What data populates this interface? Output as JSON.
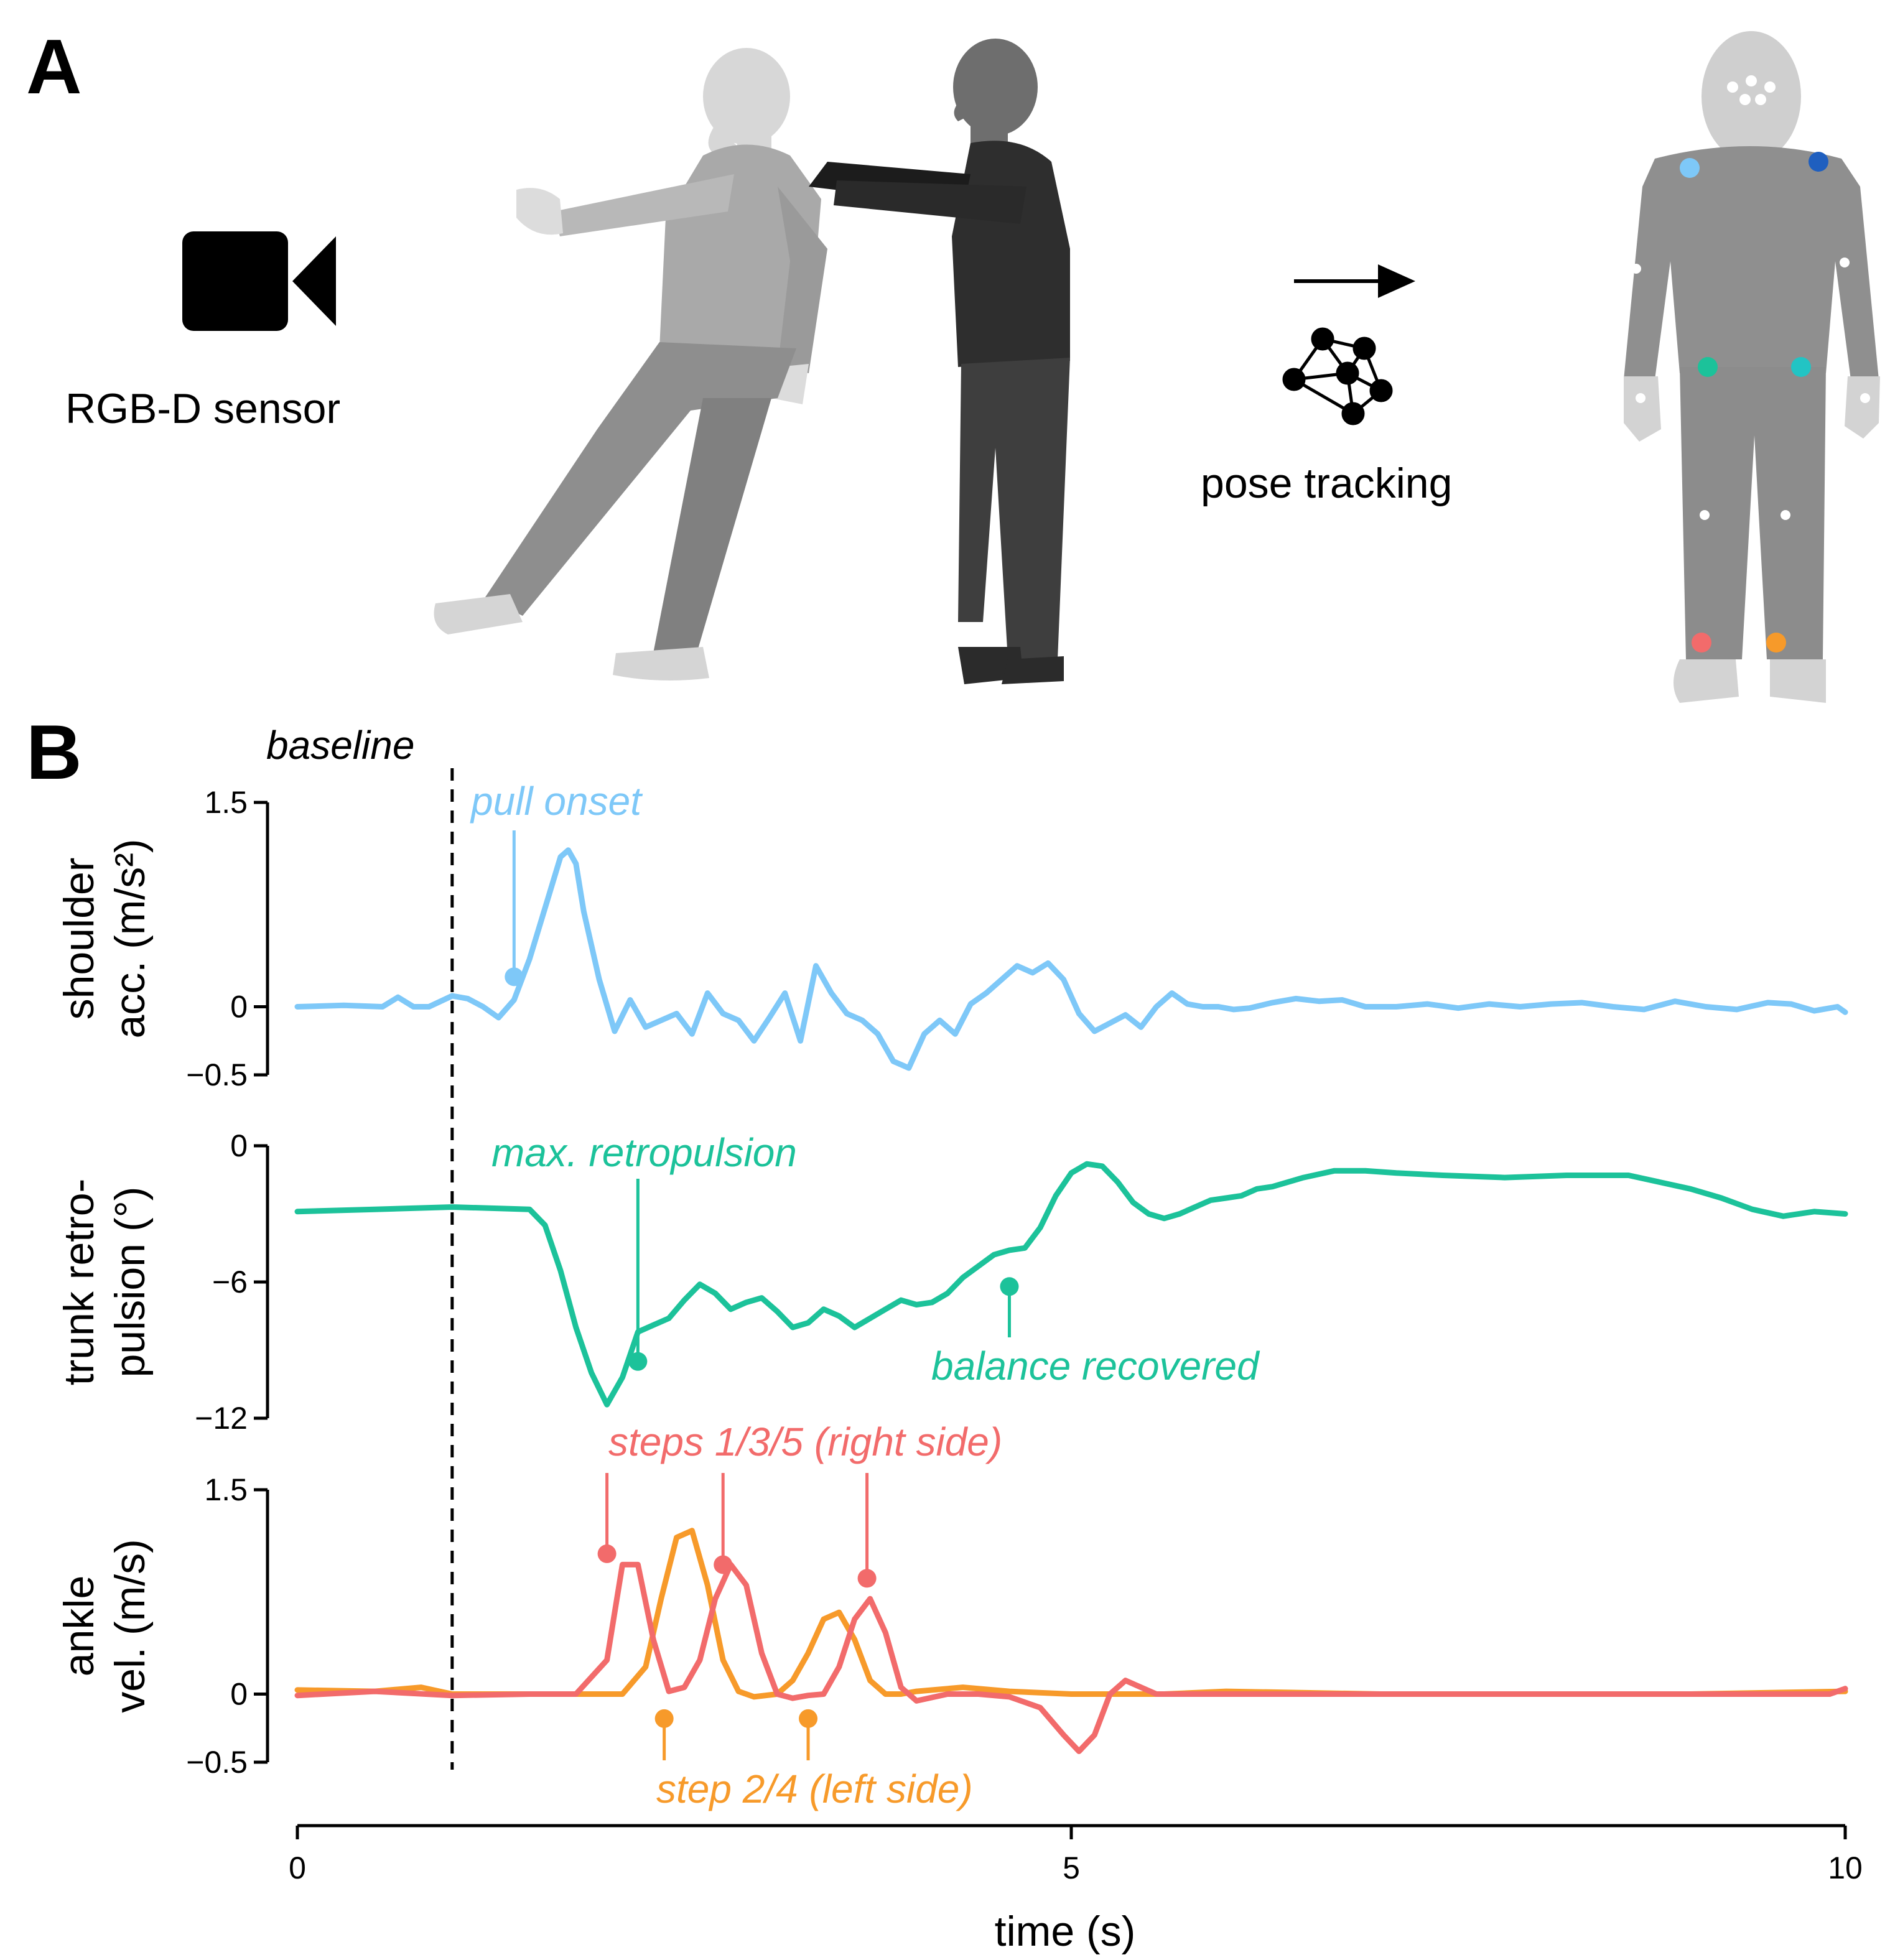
{
  "panel_a": {
    "letter": "A",
    "sensor_label": "RGB-D sensor",
    "tracking_label": "pose tracking",
    "icons": [
      "video-camera-icon",
      "network-graph-icon",
      "arrow-right-icon"
    ],
    "keypoint_colors": {
      "left_shoulder": "#7EC8F8",
      "right_shoulder": "#1F5FBF",
      "left_hip": "#1CC29A",
      "right_hip": "#22C4C4",
      "right_ankle": "#F26B6B",
      "left_ankle": "#F79A2A",
      "other": "#ffffff"
    }
  },
  "panel_b": {
    "letter": "B",
    "baseline_label": "baseline"
  },
  "chart_data": {
    "type": "line",
    "xlabel": "time (s)",
    "xlim": [
      0,
      10
    ],
    "xticks": [
      "0",
      "5",
      "10"
    ],
    "baseline_x": 1,
    "subplots": [
      {
        "ylabel": [
          "shoulder",
          "acc. (m/s²)"
        ],
        "ylim": [
          -0.5,
          1.5
        ],
        "yticks": [
          {
            "v": 1.5,
            "t": "1.5"
          },
          {
            "v": 0,
            "t": "0"
          },
          {
            "v": -0.5,
            "t": "−0.5"
          }
        ],
        "series": [
          {
            "color": "#7EC8F8",
            "x": [
              0,
              0.3,
              0.55,
              0.65,
              0.75,
              0.85,
              1.0,
              1.1,
              1.2,
              1.3,
              1.4,
              1.5,
              1.62,
              1.7,
              1.75,
              1.8,
              1.85,
              1.95,
              2.05,
              2.15,
              2.25,
              2.35,
              2.45,
              2.55,
              2.65,
              2.75,
              2.85,
              2.95,
              3.05,
              3.15,
              3.25,
              3.35,
              3.45,
              3.55,
              3.65,
              3.75,
              3.85,
              3.95,
              4.05,
              4.15,
              4.25,
              4.35,
              4.45,
              4.55,
              4.65,
              4.75,
              4.85,
              4.95,
              5.05,
              5.15,
              5.25,
              5.35,
              5.45,
              5.55,
              5.65,
              5.75,
              5.85,
              5.95,
              6.05,
              6.15,
              6.3,
              6.45,
              6.6,
              6.75,
              6.9,
              7.1,
              7.3,
              7.5,
              7.7,
              7.9,
              8.1,
              8.3,
              8.5,
              8.7,
              8.9,
              9.1,
              9.3,
              9.5,
              9.65,
              9.8,
              9.95,
              10.0
            ],
            "y": [
              0,
              0.01,
              0,
              0.07,
              0.0,
              0,
              0.08,
              0.06,
              0.0,
              -0.08,
              0.05,
              0.35,
              0.8,
              1.1,
              1.15,
              1.05,
              0.7,
              0.2,
              -0.18,
              0.05,
              -0.15,
              -0.1,
              -0.05,
              -0.2,
              0.1,
              -0.05,
              -0.1,
              -0.25,
              -0.08,
              0.1,
              -0.25,
              0.3,
              0.1,
              -0.05,
              -0.1,
              -0.2,
              -0.4,
              -0.45,
              -0.2,
              -0.1,
              -0.2,
              0.02,
              0.1,
              0.2,
              0.3,
              0.25,
              0.32,
              0.2,
              -0.05,
              -0.18,
              -0.12,
              -0.06,
              -0.15,
              0.0,
              0.1,
              0.02,
              0.0,
              0.0,
              -0.02,
              -0.01,
              0.03,
              0.06,
              0.04,
              0.05,
              0.0,
              0.0,
              0.02,
              -0.01,
              0.02,
              0.0,
              0.02,
              0.03,
              0.0,
              -0.02,
              0.04,
              0.0,
              -0.02,
              0.03,
              0.02,
              -0.03,
              0.0,
              -0.04
            ]
          }
        ],
        "annotations": [
          {
            "text": "pull onset",
            "color": "#7EC8F8",
            "x": 1.4,
            "y": 0.22
          }
        ]
      },
      {
        "ylabel": [
          "trunk retro-",
          "pulsion (°)"
        ],
        "ylim": [
          -12,
          0
        ],
        "yticks": [
          {
            "v": 0,
            "t": "0"
          },
          {
            "v": -6,
            "t": "−6"
          },
          {
            "v": -12,
            "t": "−12"
          }
        ],
        "series": [
          {
            "color": "#1CC29A",
            "x": [
              0,
              0.5,
              1.0,
              1.5,
              1.6,
              1.7,
              1.8,
              1.9,
              2.0,
              2.1,
              2.2,
              2.3,
              2.4,
              2.5,
              2.6,
              2.7,
              2.8,
              2.9,
              3.0,
              3.1,
              3.2,
              3.3,
              3.4,
              3.5,
              3.6,
              3.7,
              3.8,
              3.9,
              4.0,
              4.1,
              4.2,
              4.3,
              4.4,
              4.5,
              4.6,
              4.7,
              4.8,
              4.9,
              5.0,
              5.1,
              5.2,
              5.3,
              5.4,
              5.5,
              5.6,
              5.7,
              5.8,
              5.9,
              6.0,
              6.1,
              6.2,
              6.3,
              6.5,
              6.7,
              6.9,
              7.1,
              7.4,
              7.8,
              8.2,
              8.6,
              9.0,
              9.2,
              9.4,
              9.6,
              9.8,
              10.0
            ],
            "y": [
              -2.9,
              -2.8,
              -2.7,
              -2.8,
              -3.5,
              -5.5,
              -8.0,
              -10.0,
              -11.4,
              -10.2,
              -8.2,
              -7.9,
              -7.6,
              -6.8,
              -6.1,
              -6.5,
              -7.2,
              -6.9,
              -6.7,
              -7.3,
              -8.0,
              -7.8,
              -7.2,
              -7.5,
              -8.0,
              -7.6,
              -7.2,
              -6.8,
              -7.0,
              -6.9,
              -6.5,
              -5.8,
              -5.3,
              -4.8,
              -4.6,
              -4.5,
              -3.6,
              -2.2,
              -1.2,
              -0.8,
              -0.9,
              -1.6,
              -2.5,
              -3.0,
              -3.2,
              -3.0,
              -2.7,
              -2.4,
              -2.3,
              -2.2,
              -1.9,
              -1.8,
              -1.4,
              -1.1,
              -1.1,
              -1.2,
              -1.3,
              -1.4,
              -1.3,
              -1.3,
              -1.9,
              -2.3,
              -2.8,
              -3.1,
              -2.9,
              -3.0
            ]
          }
        ],
        "annotations": [
          {
            "text": "max. retropulsion",
            "color": "#1CC29A",
            "x": 2.2,
            "y": -9.5
          },
          {
            "text": "balance recovered",
            "color": "#1CC29A",
            "x": 4.6,
            "y": -6.2
          }
        ]
      },
      {
        "ylabel": [
          "ankle",
          "vel. (m/s)"
        ],
        "ylim": [
          -0.5,
          1.5
        ],
        "yticks": [
          {
            "v": 1.5,
            "t": "1.5"
          },
          {
            "v": 0,
            "t": "0"
          },
          {
            "v": -0.5,
            "t": "−0.5"
          }
        ],
        "series": [
          {
            "color": "#F79A2A",
            "x": [
              0,
              0.5,
              0.8,
              1.0,
              2.1,
              2.25,
              2.35,
              2.45,
              2.55,
              2.65,
              2.75,
              2.85,
              2.95,
              3.1,
              3.2,
              3.3,
              3.4,
              3.5,
              3.6,
              3.7,
              3.8,
              3.9,
              4.0,
              4.3,
              4.6,
              5.0,
              5.3,
              5.6,
              6.0,
              7.0,
              8.0,
              9.0,
              10.0
            ],
            "y": [
              0.03,
              0.02,
              0.05,
              0.0,
              0.0,
              0.2,
              0.7,
              1.15,
              1.2,
              0.8,
              0.25,
              0.02,
              -0.02,
              0.0,
              0.1,
              0.3,
              0.55,
              0.6,
              0.4,
              0.1,
              0.0,
              0.0,
              0.02,
              0.05,
              0.02,
              0.0,
              0.0,
              0.0,
              0.02,
              0.0,
              0.0,
              0.0,
              0.02
            ]
          },
          {
            "color": "#F26B6B",
            "x": [
              0,
              0.5,
              1.0,
              1.5,
              1.8,
              2.0,
              2.1,
              2.2,
              2.3,
              2.4,
              2.5,
              2.6,
              2.7,
              2.8,
              2.9,
              3.0,
              3.1,
              3.2,
              3.3,
              3.4,
              3.5,
              3.6,
              3.7,
              3.8,
              3.9,
              4.0,
              4.2,
              4.4,
              4.6,
              4.8,
              4.95,
              5.05,
              5.15,
              5.25,
              5.35,
              5.45,
              5.55,
              5.65,
              6.0,
              7.0,
              8.0,
              9.0,
              9.7,
              9.9,
              10.0
            ],
            "y": [
              -0.01,
              0.02,
              -0.01,
              0.0,
              0.0,
              0.25,
              0.95,
              0.95,
              0.4,
              0.02,
              0.05,
              0.25,
              0.7,
              0.95,
              0.8,
              0.3,
              0.0,
              -0.03,
              -0.01,
              0.0,
              0.2,
              0.55,
              0.7,
              0.45,
              0.05,
              -0.05,
              0.0,
              0.0,
              -0.02,
              -0.1,
              -0.3,
              -0.42,
              -0.3,
              0.0,
              0.1,
              0.05,
              0.0,
              0.0,
              0.0,
              0.0,
              0.0,
              0.0,
              0.0,
              0.0,
              0.04
            ]
          }
        ],
        "annotations": [
          {
            "text": "steps 1/3/5 (right side)",
            "color": "#F26B6B",
            "points": [
              {
                "x": 2.0,
                "y": 1.03
              },
              {
                "x": 2.75,
                "y": 0.95
              },
              {
                "x": 3.68,
                "y": 0.85
              }
            ]
          },
          {
            "text": "step 2/4 (left side)",
            "color": "#F79A2A",
            "points": [
              {
                "x": 2.37,
                "y": -0.18
              },
              {
                "x": 3.3,
                "y": -0.18
              }
            ]
          }
        ]
      }
    ]
  }
}
